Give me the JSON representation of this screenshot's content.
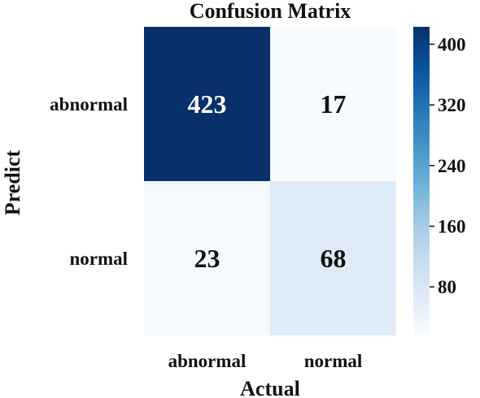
{
  "chart_data": {
    "type": "heatmap",
    "title": "Confusion Matrix",
    "xlabel": "Actual",
    "ylabel": "Predict",
    "x_categories": [
      "abnormal",
      "normal"
    ],
    "y_categories": [
      "abnormal",
      "normal"
    ],
    "values": [
      [
        423,
        17
      ],
      [
        23,
        68
      ]
    ],
    "colormap": "Blues",
    "colorbar": {
      "range": [
        17,
        423
      ],
      "ticks": [
        80,
        160,
        240,
        320,
        400
      ],
      "tick_labels": [
        "80",
        "160",
        "240",
        "320",
        "400"
      ]
    },
    "colors": {
      "low": "#f7fbff",
      "high": "#08306b"
    }
  }
}
